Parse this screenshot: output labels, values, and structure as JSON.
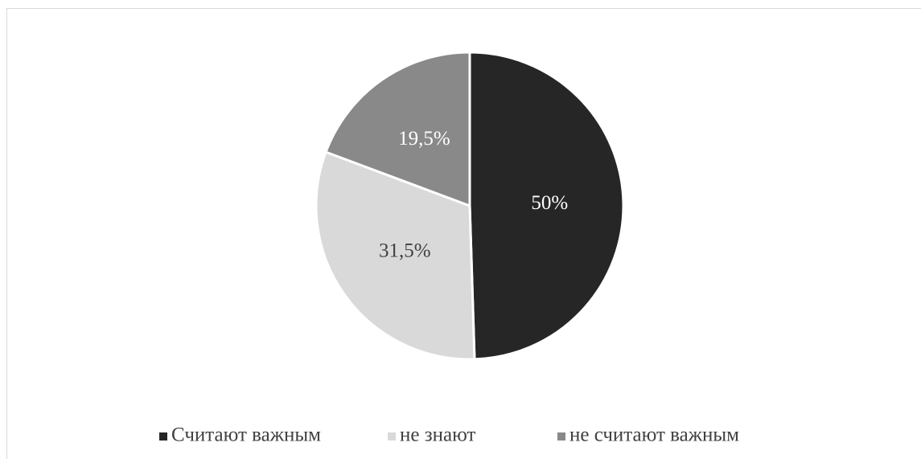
{
  "chart_data": {
    "type": "pie",
    "categories": [
      "Считают важным",
      "не знают",
      "не считают важным"
    ],
    "values": [
      50,
      31.5,
      19.5
    ],
    "value_labels": [
      "50%",
      "31,5%",
      "19,5%"
    ],
    "colors": [
      "#262626",
      "#d9d9d9",
      "#898989"
    ],
    "legend": "bottom"
  }
}
